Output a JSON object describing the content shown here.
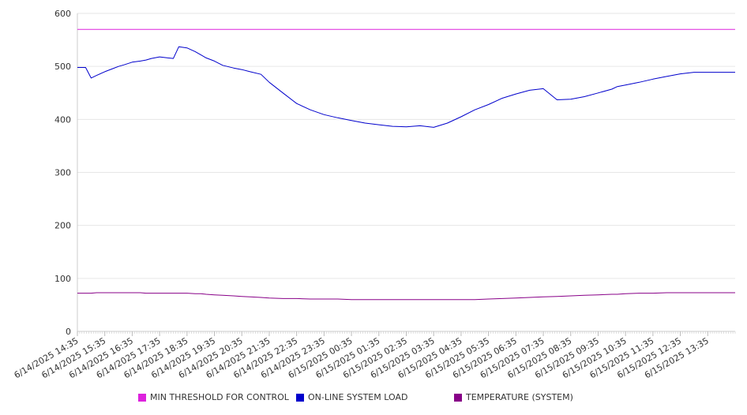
{
  "chart_data": {
    "type": "line",
    "title": "",
    "xlabel": "",
    "ylabel": "",
    "ylim": [
      0,
      600
    ],
    "yticks": [
      0,
      100,
      200,
      300,
      400,
      500,
      600
    ],
    "grid": true,
    "legend_position": "bottom",
    "x_tick_labels": [
      "6/14/2025 14:35",
      "6/14/2025 15:35",
      "6/14/2025 16:35",
      "6/14/2025 17:35",
      "6/14/2025 18:35",
      "6/14/2025 19:35",
      "6/14/2025 20:35",
      "6/14/2025 21:35",
      "6/14/2025 22:35",
      "6/14/2025 23:35",
      "6/15/2025 00:35",
      "6/15/2025 01:35",
      "6/15/2025 02:35",
      "6/15/2025 03:35",
      "6/15/2025 04:35",
      "6/15/2025 05:35",
      "6/15/2025 06:35",
      "6/15/2025 07:35",
      "6/15/2025 08:35",
      "6/15/2025 09:35",
      "6/15/2025 10:35",
      "6/15/2025 11:35",
      "6/15/2025 12:35",
      "6/15/2025 13:35"
    ],
    "x_hours": [
      0,
      0.3,
      0.5,
      0.7,
      1.0,
      1.3,
      1.5,
      1.7,
      2.0,
      2.3,
      2.5,
      2.7,
      3.0,
      3.3,
      3.5,
      3.7,
      4.0,
      4.3,
      4.5,
      4.7,
      5.0,
      5.3,
      5.7,
      6.0,
      6.3,
      6.7,
      7.0,
      7.5,
      8.0,
      8.5,
      9.0,
      9.5,
      10.0,
      10.5,
      11.0,
      11.5,
      12.0,
      12.5,
      13.0,
      13.5,
      14.0,
      14.5,
      15.0,
      15.5,
      16.0,
      16.5,
      17.0,
      17.5,
      18.0,
      18.5,
      19.0,
      19.5,
      19.7,
      20.0,
      20.5,
      21.0,
      21.5,
      22.0,
      22.5,
      23.0,
      23.5,
      24.0
    ],
    "series": [
      {
        "name": "MIN THRESHOLD FOR CONTROL",
        "color": "#dd22dd",
        "values": [
          570,
          570,
          570,
          570,
          570,
          570,
          570,
          570,
          570,
          570,
          570,
          570,
          570,
          570,
          570,
          570,
          570,
          570,
          570,
          570,
          570,
          570,
          570,
          570,
          570,
          570,
          570,
          570,
          570,
          570,
          570,
          570,
          570,
          570,
          570,
          570,
          570,
          570,
          570,
          570,
          570,
          570,
          570,
          570,
          570,
          570,
          570,
          570,
          570,
          570,
          570,
          570,
          570,
          570,
          570,
          570,
          570,
          570,
          570,
          570,
          570,
          570
        ]
      },
      {
        "name": "ON-LINE SYSTEM LOAD",
        "color": "#0000cc",
        "values": [
          498,
          498,
          478,
          483,
          490,
          496,
          500,
          503,
          508,
          510,
          512,
          515,
          518,
          516,
          515,
          537,
          535,
          528,
          522,
          516,
          510,
          502,
          497,
          494,
          490,
          485,
          470,
          450,
          430,
          418,
          409,
          403,
          398,
          393,
          390,
          387,
          386,
          388,
          385,
          393,
          405,
          418,
          428,
          440,
          448,
          455,
          458,
          437,
          438,
          443,
          450,
          457,
          462,
          465,
          470,
          476,
          481,
          486,
          489,
          489,
          489,
          489
        ]
      },
      {
        "name": "TEMPERATURE (SYSTEM)",
        "color": "#880088",
        "values": [
          72,
          72,
          72,
          73,
          73,
          73,
          73,
          73,
          73,
          73,
          72,
          72,
          72,
          72,
          72,
          72,
          72,
          71,
          71,
          70,
          69,
          68,
          67,
          66,
          65,
          64,
          63,
          62,
          62,
          61,
          61,
          61,
          60,
          60,
          60,
          60,
          60,
          60,
          60,
          60,
          60,
          60,
          61,
          62,
          63,
          64,
          65,
          66,
          67,
          68,
          69,
          70,
          70,
          71,
          72,
          72,
          73,
          73,
          73,
          73,
          73,
          73
        ]
      }
    ]
  }
}
